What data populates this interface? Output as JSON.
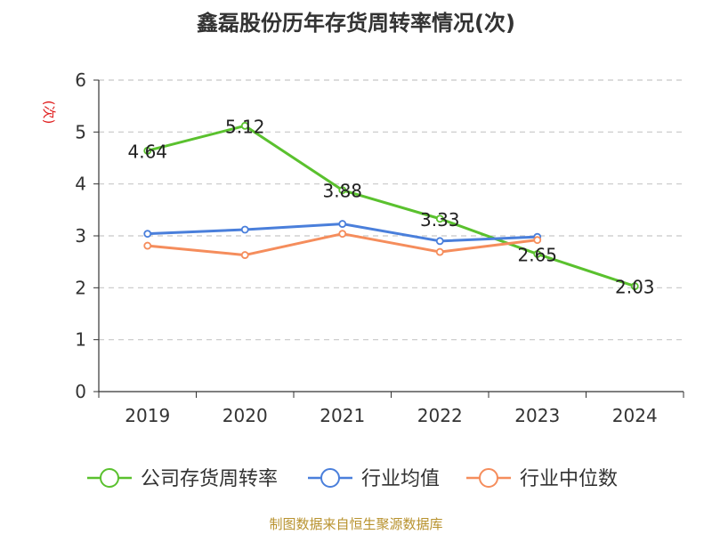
{
  "chart_data": {
    "type": "line",
    "title": "鑫磊股份历年存货周转率情况(次)",
    "ylabel": "(次)",
    "xlabel": "",
    "categories": [
      "2019",
      "2020",
      "2021",
      "2022",
      "2023",
      "2024"
    ],
    "ylim": [
      0,
      6
    ],
    "yticks": [
      "0",
      "1",
      "2",
      "3",
      "4",
      "5",
      "6"
    ],
    "grid": true,
    "legend_position": "bottom",
    "series": [
      {
        "name": "公司存货周转率",
        "color": "#5ac12e",
        "values": [
          4.64,
          5.12,
          3.88,
          3.33,
          2.65,
          2.03
        ],
        "labels": [
          "4.64",
          "5.12",
          "3.88",
          "3.33",
          "2.65",
          "2.03"
        ]
      },
      {
        "name": "行业均值",
        "color": "#4a7fdb",
        "values": [
          3.04,
          3.12,
          3.23,
          2.9,
          2.98,
          null
        ]
      },
      {
        "name": "行业中位数",
        "color": "#f58d5c",
        "values": [
          2.81,
          2.63,
          3.04,
          2.69,
          2.92,
          null
        ]
      }
    ]
  },
  "source_note": "制图数据来自恒生聚源数据库"
}
